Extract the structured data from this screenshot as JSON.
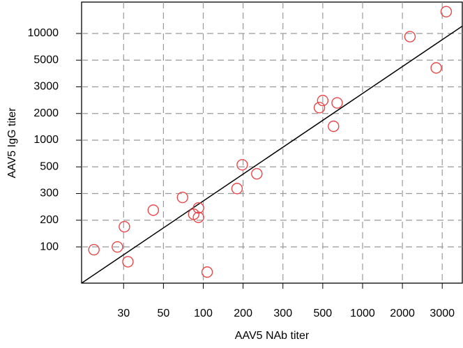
{
  "chart_data": {
    "type": "scatter",
    "x_label": "AAV5 NAb titer",
    "y_label": "AAV5 IgG titer",
    "x": [
      20.5,
      27.7,
      31.7,
      30.3,
      43.9,
      69.7,
      84.7,
      92,
      92,
      107,
      180,
      197,
      230,
      479,
      500,
      642,
      603,
      2160,
      2822,
      3124
    ],
    "y": [
      93,
      100,
      68,
      169,
      233,
      283,
      219,
      241,
      209,
      52,
      330,
      528,
      438,
      2187,
      2437,
      2350,
      1434,
      9200,
      4310,
      17650
    ],
    "color": "#e8474a",
    "fit_line": {
      "x": [
        17.5,
        3680
      ],
      "y": [
        39,
        12100
      ],
      "color": "#000000"
    },
    "xlim": [
      17.5,
      3680
    ],
    "ylim": [
      39,
      22600
    ],
    "xticks": [
      30,
      50,
      100,
      200,
      300,
      500,
      1000,
      2000,
      3000
    ],
    "yticks": [
      100,
      200,
      300,
      500,
      1000,
      2000,
      3000,
      5000,
      10000
    ],
    "grid": true
  }
}
